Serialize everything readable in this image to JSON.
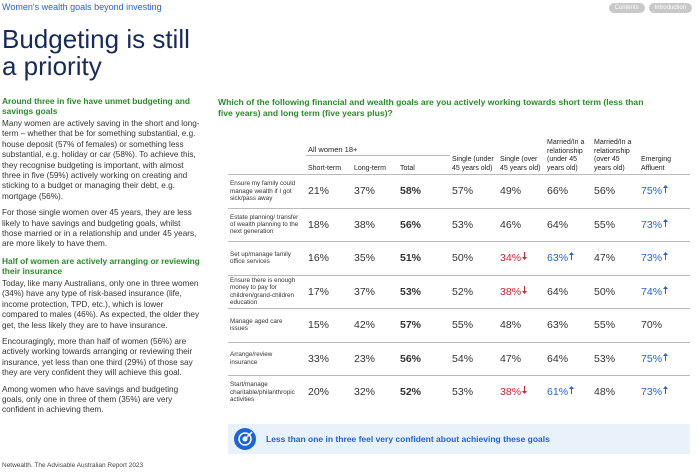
{
  "header": {
    "section": "Women's wealth goals beyond investing",
    "buttons": [
      "Contents",
      "Introduction"
    ]
  },
  "title": "Budgeting is still a priority",
  "left": [
    {
      "heading": "Around three in five have unmet budgeting and savings goals",
      "paragraphs": [
        "Many women are actively saving in the short and long-term – whether that be for something substantial, e.g. house deposit (57% of females) or something less substantial, e.g. holiday or car (58%). To achieve this, they recognise budgeting is important, with almost three in five (59%) actively working on creating and sticking to a budget or managing their debt, e.g. mortgage (56%).",
        "For those single women over 45 years, they are less likely to have savings and budgeting goals, whilst those married or in a relationship and under 45 years, are more likely to have them."
      ]
    },
    {
      "heading": "Half of women are actively arranging or reviewing their insurance",
      "paragraphs": [
        "Today, like many Australians, only one in three women (34%) have any type of risk-based insurance (life, income protection, TPD, etc.), which is lower compared to males (46%). As expected, the older they get, the less likely they are to have insurance.",
        "Encouragingly, more than half of women (56%) are actively working towards arranging or reviewing their insurance, yet less than one third (29%) of those say they are very confident they will achieve this goal.",
        "Among women who have savings and budgeting goals, only one in three of them (35%) are very confident in achieving them."
      ]
    }
  ],
  "table": {
    "question": "Which of the following financial and wealth goals are you actively working towards short term (less than five years) and long term (five years plus)?",
    "group": "All women 18+",
    "columns": [
      "Short-term",
      "Long-term",
      "Total",
      "Single (under 45 years old)",
      "Single (over 45 years old)",
      "Married/In a relationship (under 45 years old)",
      "Married/In a relationship (over 45 years old)",
      "Emerging Affluent"
    ],
    "rows": [
      {
        "label": "Ensure my family could manage wealth if I got sick/pass away",
        "cells": [
          "21%",
          "37%",
          "58%",
          "57%",
          "49%",
          "66%",
          "56%",
          {
            "text": "75%",
            "trend": "up"
          }
        ]
      },
      {
        "label": "Estate planning/ transfer of wealth planning to the next generation",
        "cells": [
          "18%",
          "38%",
          "56%",
          "53%",
          "46%",
          "64%",
          "55%",
          {
            "text": "73%",
            "trend": "up"
          }
        ]
      },
      {
        "label": "Set up/manage family office services",
        "cells": [
          "16%",
          "35%",
          "51%",
          "50%",
          {
            "text": "34%",
            "trend": "down"
          },
          {
            "text": "63%",
            "trend": "up"
          },
          "47%",
          {
            "text": "73%",
            "trend": "up"
          }
        ]
      },
      {
        "label": "Ensure there is enough money to pay for children/grand-children education",
        "cells": [
          "17%",
          "37%",
          "53%",
          "52%",
          {
            "text": "38%",
            "trend": "down"
          },
          "64%",
          "50%",
          {
            "text": "74%",
            "trend": "up"
          }
        ]
      },
      {
        "label": "Manage aged care issues",
        "cells": [
          "15%",
          "42%",
          "57%",
          "55%",
          "48%",
          "63%",
          "55%",
          "70%"
        ]
      },
      {
        "label": "Arrange/review insurance",
        "cells": [
          "33%",
          "23%",
          "56%",
          "54%",
          "47%",
          "64%",
          "53%",
          {
            "text": "75%",
            "trend": "up"
          }
        ]
      },
      {
        "label": "Start/manage charitable/philanthropic activities",
        "cells": [
          "20%",
          "32%",
          "52%",
          "53%",
          {
            "text": "38%",
            "trend": "down"
          },
          {
            "text": "61%",
            "trend": "up"
          },
          "48%",
          {
            "text": "73%",
            "trend": "up"
          }
        ]
      }
    ]
  },
  "callout": "Less than one in three feel very confident about achieving these goals",
  "footer": "Netwealth. The Advisable Australian Report 2023"
}
